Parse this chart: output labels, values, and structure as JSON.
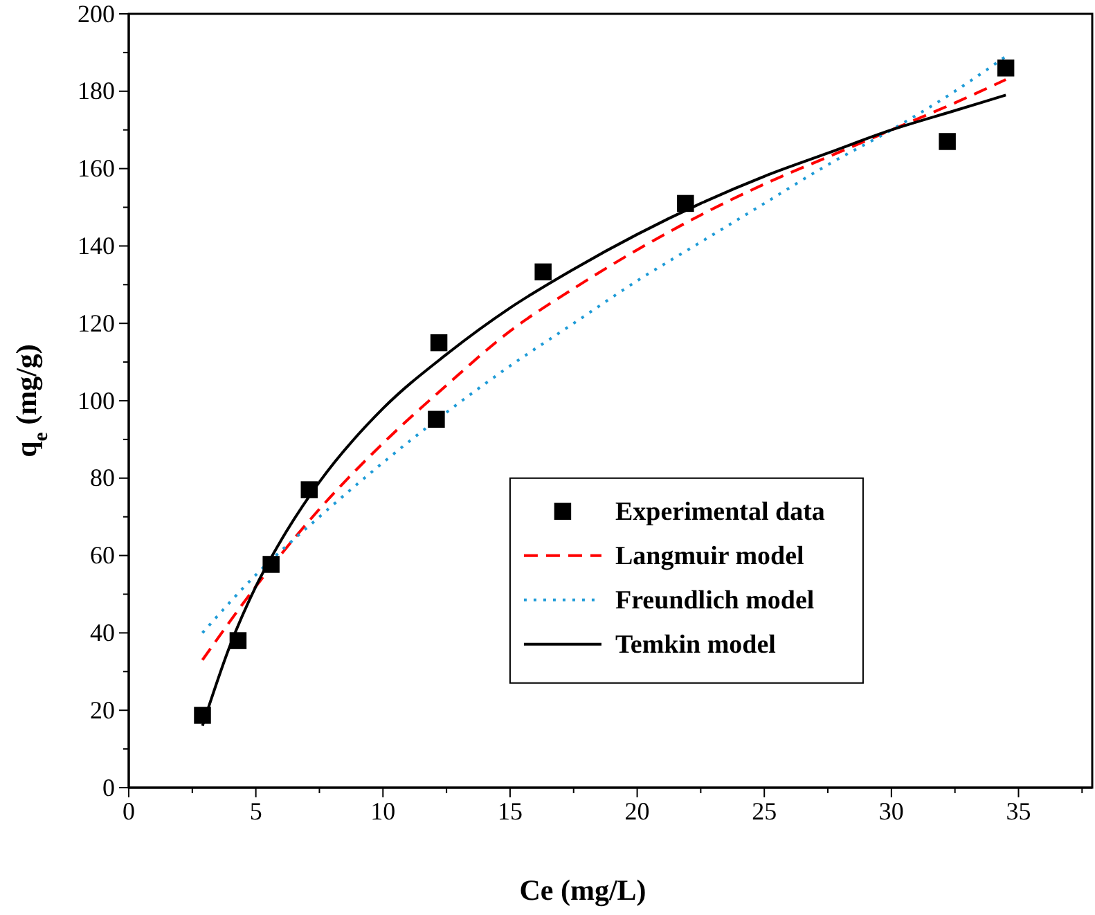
{
  "chart_data": {
    "type": "line",
    "xlabel": "Ce (mg/L)",
    "ylabel": "q$_{e}$ (mg/g)",
    "xlim": [
      0,
      37.9
    ],
    "ylim": [
      0,
      200
    ],
    "xticks": [
      0,
      5,
      10,
      15,
      20,
      25,
      30,
      35
    ],
    "yticks": [
      0,
      20,
      40,
      60,
      80,
      100,
      120,
      140,
      160,
      180,
      200
    ],
    "grid": false,
    "legend": "bottom right",
    "series": [
      {
        "name": "Experimental data",
        "type": "scatter",
        "marker": "square",
        "color": "#000000",
        "x": [
          2.9,
          4.3,
          5.6,
          7.1,
          12.1,
          12.2,
          16.3,
          21.9,
          32.2,
          34.5
        ],
        "values": [
          18.7,
          38,
          57.7,
          77,
          95.2,
          115,
          133.3,
          151,
          167,
          186
        ]
      },
      {
        "name": "Langmuir model",
        "line_style": "dashed",
        "color": "#ff0000",
        "x": [
          2.9,
          5,
          7.5,
          10,
          12.5,
          15,
          17.5,
          20,
          22.5,
          25,
          27.5,
          30,
          32.5,
          34.5
        ],
        "values": [
          33,
          52,
          72,
          89,
          104,
          118,
          129,
          139,
          148,
          156,
          163,
          170,
          177,
          183
        ]
      },
      {
        "name": "Freundlich model",
        "line_style": "dotted",
        "color": "#1e9bd7",
        "x": [
          2.9,
          5,
          7.5,
          10,
          12.5,
          15,
          17.5,
          20,
          22.5,
          25,
          27.5,
          30,
          32.5,
          34.5
        ],
        "values": [
          40,
          55,
          70,
          84,
          97,
          109,
          120,
          131,
          141,
          151,
          161,
          170,
          180,
          189
        ]
      },
      {
        "name": "Temkin model",
        "line_style": "solid",
        "color": "#000000",
        "x": [
          2.9,
          4,
          5,
          6,
          7.5,
          10,
          12.5,
          15,
          17.5,
          20,
          22.5,
          25,
          27.5,
          30,
          32.5,
          34.5
        ],
        "values": [
          16,
          37,
          52,
          64,
          79,
          98,
          112,
          124,
          134,
          143,
          151,
          158,
          164,
          170,
          175,
          179
        ]
      }
    ]
  }
}
